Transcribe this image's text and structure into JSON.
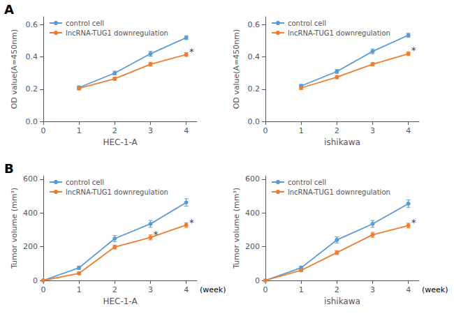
{
  "chart_data": [
    {
      "type": "line",
      "panel_label": "A",
      "xlabel": "HEC-1-A",
      "ylabel": "OD value(A=450nm)",
      "x": [
        1,
        2,
        3,
        4
      ],
      "xlim": [
        0,
        4.3
      ],
      "xticks": [
        0,
        1,
        2,
        3,
        4
      ],
      "ylim": [
        0,
        0.65
      ],
      "yticks": [
        {
          "value": 0.0,
          "label": "0.0"
        },
        0.2,
        0.4,
        0.6
      ],
      "grid": false,
      "legend": "upper left",
      "marker": "circle",
      "series": [
        {
          "name": "control cell",
          "color": "#5B9BD5",
          "values": [
            0.21,
            0.3,
            0.42,
            0.52
          ],
          "errors": [
            0.01,
            0.012,
            0.015,
            0.012
          ]
        },
        {
          "name": "lncRNA-TUG1 downregulation",
          "color": "#ED7D31",
          "values": [
            0.205,
            0.265,
            0.355,
            0.415
          ],
          "errors": [
            0.01,
            0.01,
            0.012,
            0.012
          ]
        }
      ],
      "annotations": [
        {
          "text": "*",
          "x": 4.08,
          "y": 0.432
        }
      ]
    },
    {
      "type": "line",
      "xlabel": "ishikawa",
      "ylabel": "OD value(A=450nm)",
      "x": [
        1,
        2,
        3,
        4
      ],
      "xlim": [
        0,
        4.3
      ],
      "xticks": [
        0,
        1,
        2,
        3,
        4
      ],
      "ylim": [
        0,
        0.65
      ],
      "yticks": [
        {
          "value": 0.0,
          "label": "0.0"
        },
        0.2,
        0.4,
        0.6
      ],
      "grid": false,
      "legend": "upper left",
      "marker": "circle",
      "series": [
        {
          "name": "control cell",
          "color": "#5B9BD5",
          "values": [
            0.22,
            0.31,
            0.435,
            0.535
          ],
          "errors": [
            0.01,
            0.012,
            0.015,
            0.012
          ]
        },
        {
          "name": "lncRNA-TUG1 downregulation",
          "color": "#ED7D31",
          "values": [
            0.208,
            0.275,
            0.355,
            0.42
          ],
          "errors": [
            0.01,
            0.01,
            0.01,
            0.012
          ]
        }
      ],
      "annotations": [
        {
          "text": "*",
          "x": 4.08,
          "y": 0.44
        }
      ]
    },
    {
      "type": "line",
      "panel_label": "B",
      "xlabel": "HEC-1-A",
      "ylabel": "Tumor volume (mm³)",
      "x": [
        0,
        1,
        2,
        3,
        4
      ],
      "xlim": [
        0,
        4.3
      ],
      "xticks": [
        0,
        1,
        2,
        3,
        4
      ],
      "ylim": [
        0,
        620
      ],
      "yticks": [
        0,
        200,
        400,
        600
      ],
      "grid": false,
      "legend": "upper left",
      "marker": "circle",
      "series": [
        {
          "name": "control cell",
          "color": "#5B9BD5",
          "values": [
            0,
            75,
            248,
            335,
            462
          ],
          "errors": [
            0,
            10,
            18,
            20,
            22
          ]
        },
        {
          "name": "lncRNA-TUG1 downregulation",
          "color": "#ED7D31",
          "values": [
            0,
            42,
            198,
            255,
            328
          ],
          "errors": [
            0,
            8,
            12,
            15,
            14
          ]
        }
      ],
      "annotations": [
        {
          "text": "*",
          "x": 3.08,
          "y": 272
        },
        {
          "text": "*",
          "x": 4.08,
          "y": 342
        },
        {
          "text": "(week)"
        }
      ]
    },
    {
      "type": "line",
      "xlabel": "ishikawa",
      "ylabel": "Tumor volume (mm³)",
      "x": [
        0,
        1,
        2,
        3,
        4
      ],
      "xlim": [
        0,
        4.3
      ],
      "xticks": [
        0,
        1,
        2,
        3,
        4
      ],
      "ylim": [
        0,
        620
      ],
      "yticks": [
        0,
        200,
        400,
        600
      ],
      "grid": false,
      "legend": "upper left",
      "marker": "circle",
      "series": [
        {
          "name": "control cell",
          "color": "#5B9BD5",
          "values": [
            0,
            75,
            240,
            335,
            455
          ],
          "errors": [
            0,
            10,
            18,
            20,
            22
          ]
        },
        {
          "name": "lncRNA-TUG1 downregulation",
          "color": "#ED7D31",
          "values": [
            0,
            60,
            165,
            270,
            325
          ],
          "errors": [
            0,
            8,
            12,
            15,
            14
          ]
        }
      ],
      "annotations": [
        {
          "text": "*",
          "x": 4.08,
          "y": 342
        },
        {
          "text": "(week)"
        }
      ]
    }
  ]
}
